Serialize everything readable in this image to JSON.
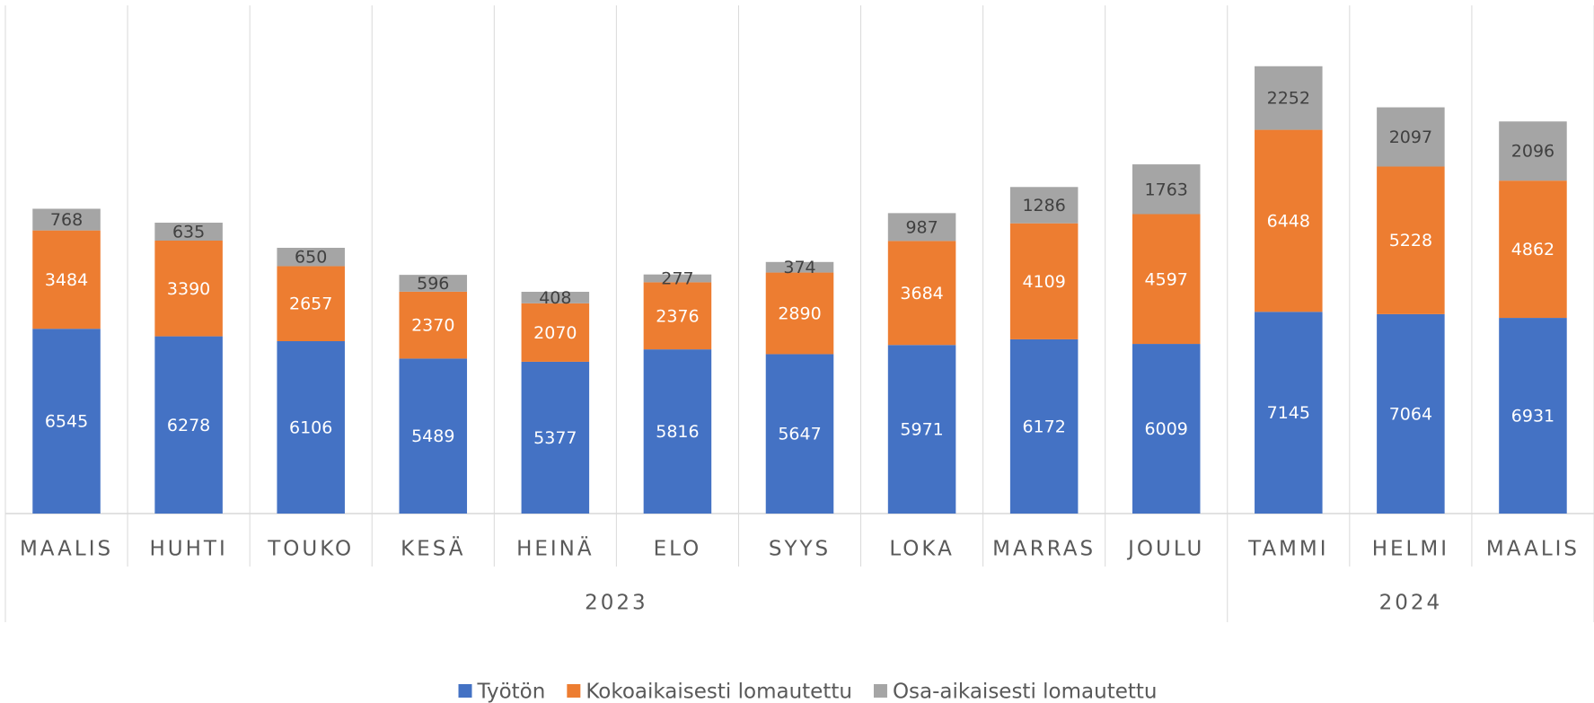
{
  "chart_data": {
    "type": "stacked_bar",
    "groups": [
      {
        "label": "2023",
        "categories": [
          "MAALIS",
          "HUHTI",
          "TOUKO",
          "KESÄ",
          "HEINÄ",
          "ELO",
          "SYYS",
          "LOKA",
          "MARRAS",
          "JOULU"
        ]
      },
      {
        "label": "2024",
        "categories": [
          "TAMMI",
          "HELMI",
          "MAALIS"
        ]
      }
    ],
    "series": [
      {
        "name": "Työtön",
        "color": "#4472c4",
        "label_color": "#ffffff",
        "values": [
          6545,
          6278,
          6106,
          5489,
          5377,
          5816,
          5647,
          5971,
          6172,
          6009,
          7145,
          7064,
          6931
        ]
      },
      {
        "name": "Kokoaikaisesti lomautettu",
        "color": "#ed7d31",
        "label_color": "#ffffff",
        "values": [
          3484,
          3390,
          2657,
          2370,
          2070,
          2376,
          2890,
          3684,
          4109,
          4597,
          6448,
          5228,
          4862
        ]
      },
      {
        "name": "Osa-aikaisesti lomautettu",
        "color": "#a5a5a5",
        "label_color": "#404040",
        "values": [
          768,
          635,
          650,
          596,
          408,
          277,
          374,
          987,
          1286,
          1763,
          2252,
          2097,
          2096
        ]
      }
    ],
    "ylim": [
      0,
      18000
    ],
    "legend": "bottom"
  }
}
